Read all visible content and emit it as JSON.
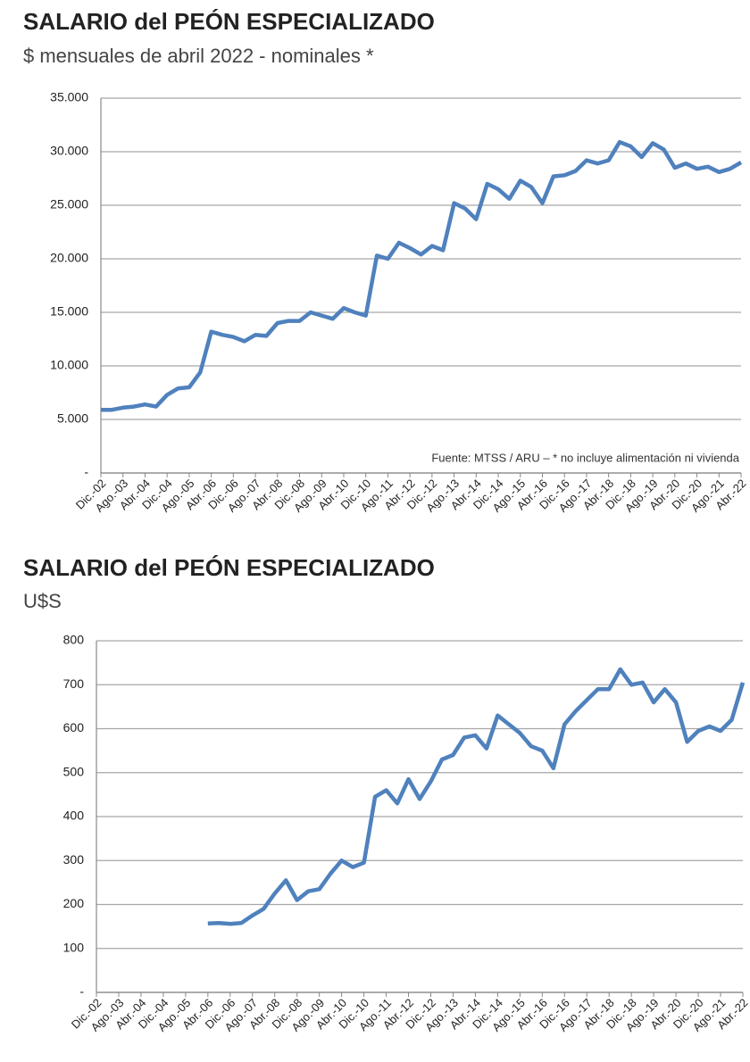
{
  "chart_data": [
    {
      "type": "line",
      "title": "SALARIO del PEÓN ESPECIALIZADO",
      "subtitle": "$ mensuales de abril 2022 - nominales *",
      "annotation": "Fuente: MTSS / ARU – * no incluye alimentación ni vivienda",
      "categories": [
        "Dic.-02",
        null,
        "Ago.-03",
        null,
        "Abr.-04",
        null,
        "Dic.-04",
        null,
        "Ago.-05",
        null,
        "Abr.-06",
        null,
        "Dic.-06",
        null,
        "Ago.-07",
        null,
        "Abr.-08",
        null,
        "Dic.-08",
        null,
        "Ago.-09",
        null,
        "Abr.-10",
        null,
        "Dic.-10",
        null,
        "Ago.-11",
        null,
        "Abr.-12",
        null,
        "Dic.-12",
        null,
        "Ago.-13",
        null,
        "Abr.-14",
        null,
        "Dic.-14",
        null,
        "Ago.-15",
        null,
        "Abr.-16",
        null,
        "Dic.-16",
        null,
        "Ago.-17",
        null,
        "Abr.-18",
        null,
        "Dic.-18",
        null,
        "Ago.-19",
        null,
        "Abr.-20",
        null,
        "Dic.-20",
        null,
        "Ago.-21",
        null,
        "Abr.-22"
      ],
      "series": [
        {
          "name": "Salario",
          "color": "#4f81bd",
          "values": [
            5900,
            5900,
            6100,
            6200,
            6400,
            6200,
            7300,
            7900,
            8000,
            9400,
            13200,
            12900,
            12700,
            12300,
            12900,
            12800,
            14000,
            14200,
            14200,
            15000,
            14700,
            14400,
            15400,
            15000,
            14700,
            20300,
            20000,
            21500,
            21000,
            20400,
            21200,
            20800,
            25200,
            24700,
            23700,
            27000,
            26500,
            25600,
            27300,
            26700,
            25200,
            27700,
            27800,
            28200,
            29200,
            28900,
            29200,
            30900,
            30500,
            29500,
            30800,
            30200,
            28500,
            28900,
            28400,
            28600,
            28100,
            28400,
            29000
          ]
        }
      ],
      "ylim": [
        0,
        35000
      ],
      "yticks": [
        {
          "value": 0,
          "label": "-"
        },
        {
          "value": 5000,
          "label": "5.000"
        },
        {
          "value": 10000,
          "label": "10.000"
        },
        {
          "value": 15000,
          "label": "15.000"
        },
        {
          "value": 20000,
          "label": "20.000"
        },
        {
          "value": 25000,
          "label": "25.000"
        },
        {
          "value": 30000,
          "label": "30.000"
        },
        {
          "value": 35000,
          "label": "35.000"
        }
      ],
      "grid": true
    },
    {
      "type": "line",
      "title": "SALARIO del PEÓN ESPECIALIZADO",
      "subtitle": "U$S",
      "categories": [
        "Dic.-02",
        null,
        "Ago.-03",
        null,
        "Abr.-04",
        null,
        "Dic.-04",
        null,
        "Ago.-05",
        null,
        "Abr.-06",
        null,
        "Dic.-06",
        null,
        "Ago.-07",
        null,
        "Abr.-08",
        null,
        "Dic.-08",
        null,
        "Ago.-09",
        null,
        "Abr.-10",
        null,
        "Dic.-10",
        null,
        "Ago.-11",
        null,
        "Abr.-12",
        null,
        "Dic.-12",
        null,
        "Ago.-13",
        null,
        "Abr.-14",
        null,
        "Dic.-14",
        null,
        "Ago.-15",
        null,
        "Abr.-16",
        null,
        "Dic.-16",
        null,
        "Ago.-17",
        null,
        "Abr.-18",
        null,
        "Dic.-18",
        null,
        "Ago.-19",
        null,
        "Abr.-20",
        null,
        "Dic.-20",
        null,
        "Ago.-21",
        null,
        "Abr.-22"
      ],
      "series": [
        {
          "name": "Salario U$S",
          "color": "#4f81bd",
          "values": [
            null,
            null,
            null,
            null,
            null,
            null,
            null,
            null,
            null,
            null,
            157,
            158,
            156,
            158,
            175,
            190,
            225,
            255,
            210,
            230,
            235,
            270,
            300,
            285,
            295,
            445,
            460,
            430,
            485,
            440,
            480,
            530,
            540,
            580,
            585,
            555,
            630,
            610,
            590,
            560,
            550,
            510,
            610,
            640,
            665,
            690,
            690,
            735,
            700,
            705,
            660,
            690,
            660,
            570,
            595,
            605,
            595,
            620,
            705
          ]
        }
      ],
      "ylim": [
        0,
        800
      ],
      "yticks": [
        {
          "value": 0,
          "label": "-"
        },
        100,
        200,
        300,
        400,
        500,
        600,
        700,
        800
      ],
      "grid": true
    }
  ]
}
